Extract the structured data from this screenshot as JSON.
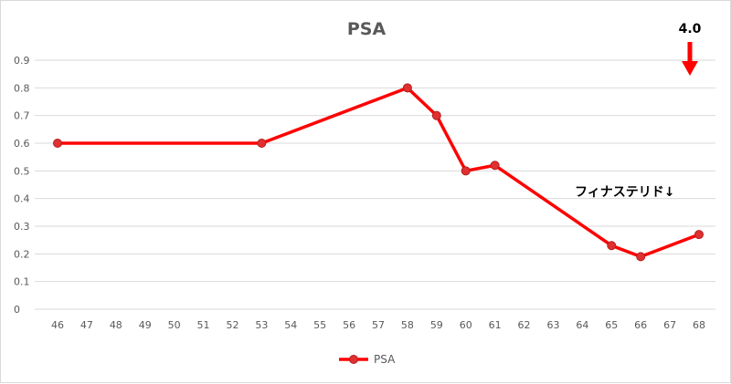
{
  "chart_data": {
    "type": "line",
    "title": "PSA",
    "xlabel": "",
    "ylabel": "",
    "categories": [
      "46",
      "47",
      "48",
      "49",
      "50",
      "51",
      "52",
      "53",
      "54",
      "55",
      "56",
      "57",
      "58",
      "59",
      "60",
      "61",
      "62",
      "63",
      "64",
      "65",
      "66",
      "67",
      "68"
    ],
    "ylim": [
      0,
      0.9
    ],
    "y_ticks": [
      "0",
      "0.1",
      "0.2",
      "0.3",
      "0.4",
      "0.5",
      "0.6",
      "0.7",
      "0.8",
      "0.9"
    ],
    "grid": true,
    "legend_position": "bottom",
    "series": [
      {
        "name": "PSA",
        "color": "#ff0000",
        "points": [
          {
            "x": "46",
            "y": 0.6
          },
          {
            "x": "53",
            "y": 0.6
          },
          {
            "x": "58",
            "y": 0.8
          },
          {
            "x": "59",
            "y": 0.7
          },
          {
            "x": "60",
            "y": 0.5
          },
          {
            "x": "61",
            "y": 0.52
          },
          {
            "x": "65",
            "y": 0.23
          },
          {
            "x": "66",
            "y": 0.19
          },
          {
            "x": "68",
            "y": 0.27
          }
        ]
      }
    ],
    "annotations": [
      {
        "text": "4.0",
        "at_x": "68",
        "kind": "arrow-down-label"
      },
      {
        "text": "フィナステリド↓",
        "at_x": "65",
        "kind": "text"
      }
    ]
  }
}
